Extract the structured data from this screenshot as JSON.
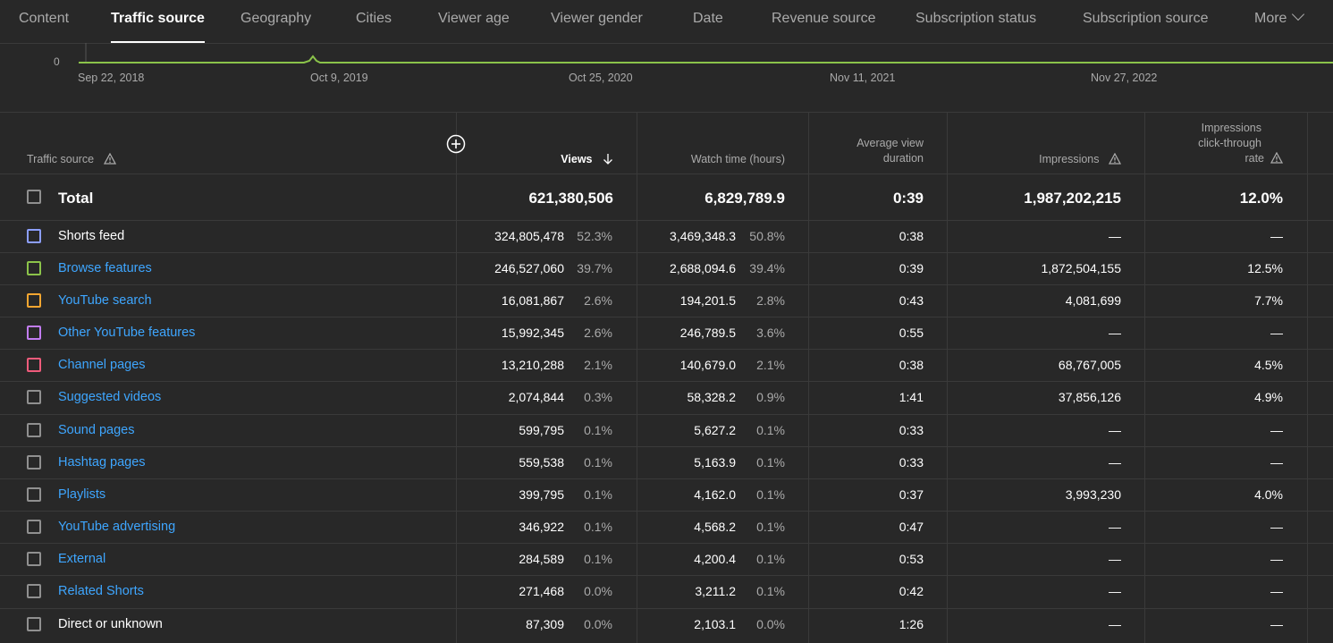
{
  "tabs": [
    {
      "label": "Content"
    },
    {
      "label": "Traffic source"
    },
    {
      "label": "Geography"
    },
    {
      "label": "Cities"
    },
    {
      "label": "Viewer age"
    },
    {
      "label": "Viewer gender"
    },
    {
      "label": "Date"
    },
    {
      "label": "Revenue source"
    },
    {
      "label": "Subscription status"
    },
    {
      "label": "Subscription source"
    },
    {
      "label": "More"
    }
  ],
  "active_tab": "Traffic source",
  "chart": {
    "y_zero_label": "0",
    "x_ticks": [
      "Sep 22, 2018",
      "Oct 9, 2019",
      "Oct 25, 2020",
      "Nov 11, 2021",
      "Nov 27, 2022"
    ],
    "line_color": "#8bc34a"
  },
  "table": {
    "headers": {
      "source": "Traffic source",
      "views": "Views",
      "watch": "Watch time (hours)",
      "avd_line1": "Average view",
      "avd_line2": "duration",
      "impressions": "Impressions",
      "ctr_line1": "Impressions",
      "ctr_line2": "click-through",
      "ctr_line3": "rate"
    },
    "total": {
      "label": "Total",
      "views": "621,380,506",
      "watch": "6,829,789.9",
      "avd": "0:39",
      "impressions": "1,987,202,215",
      "ctr": "12.0%"
    },
    "rows": [
      {
        "source": "Shorts feed",
        "link": false,
        "color": "#8c9eff",
        "views": "324,805,478",
        "vpct": "52.3%",
        "watch": "3,469,348.3",
        "wpct": "50.8%",
        "avd": "0:38",
        "impressions": "—",
        "ctr": "—"
      },
      {
        "source": "Browse features",
        "link": true,
        "color": "#8bc34a",
        "views": "246,527,060",
        "vpct": "39.7%",
        "watch": "2,688,094.6",
        "wpct": "39.4%",
        "avd": "0:39",
        "impressions": "1,872,504,155",
        "ctr": "12.5%"
      },
      {
        "source": "YouTube search",
        "link": true,
        "color": "#f6a630",
        "views": "16,081,867",
        "vpct": "2.6%",
        "watch": "194,201.5",
        "wpct": "2.8%",
        "avd": "0:43",
        "impressions": "4,081,699",
        "ctr": "7.7%"
      },
      {
        "source": "Other YouTube features",
        "link": true,
        "color": "#c27cf2",
        "views": "15,992,345",
        "vpct": "2.6%",
        "watch": "246,789.5",
        "wpct": "3.6%",
        "avd": "0:55",
        "impressions": "—",
        "ctr": "—"
      },
      {
        "source": "Channel pages",
        "link": true,
        "color": "#ef5b7b",
        "views": "13,210,288",
        "vpct": "2.1%",
        "watch": "140,679.0",
        "wpct": "2.1%",
        "avd": "0:38",
        "impressions": "68,767,005",
        "ctr": "4.5%"
      },
      {
        "source": "Suggested videos",
        "link": true,
        "color": "#909090",
        "views": "2,074,844",
        "vpct": "0.3%",
        "watch": "58,328.2",
        "wpct": "0.9%",
        "avd": "1:41",
        "impressions": "37,856,126",
        "ctr": "4.9%"
      },
      {
        "source": "Sound pages",
        "link": true,
        "color": "#909090",
        "views": "599,795",
        "vpct": "0.1%",
        "watch": "5,627.2",
        "wpct": "0.1%",
        "avd": "0:33",
        "impressions": "—",
        "ctr": "—"
      },
      {
        "source": "Hashtag pages",
        "link": true,
        "color": "#909090",
        "views": "559,538",
        "vpct": "0.1%",
        "watch": "5,163.9",
        "wpct": "0.1%",
        "avd": "0:33",
        "impressions": "—",
        "ctr": "—"
      },
      {
        "source": "Playlists",
        "link": true,
        "color": "#909090",
        "views": "399,795",
        "vpct": "0.1%",
        "watch": "4,162.0",
        "wpct": "0.1%",
        "avd": "0:37",
        "impressions": "3,993,230",
        "ctr": "4.0%"
      },
      {
        "source": "YouTube advertising",
        "link": true,
        "color": "#909090",
        "views": "346,922",
        "vpct": "0.1%",
        "watch": "4,568.2",
        "wpct": "0.1%",
        "avd": "0:47",
        "impressions": "—",
        "ctr": "—"
      },
      {
        "source": "External",
        "link": true,
        "color": "#909090",
        "views": "284,589",
        "vpct": "0.1%",
        "watch": "4,200.4",
        "wpct": "0.1%",
        "avd": "0:53",
        "impressions": "—",
        "ctr": "—"
      },
      {
        "source": "Related Shorts",
        "link": true,
        "color": "#909090",
        "views": "271,468",
        "vpct": "0.0%",
        "watch": "3,211.2",
        "wpct": "0.1%",
        "avd": "0:42",
        "impressions": "—",
        "ctr": "—"
      },
      {
        "source": "Direct or unknown",
        "link": false,
        "color": "#909090",
        "views": "87,309",
        "vpct": "0.0%",
        "watch": "2,103.1",
        "wpct": "0.0%",
        "avd": "1:26",
        "impressions": "—",
        "ctr": "—"
      }
    ]
  }
}
